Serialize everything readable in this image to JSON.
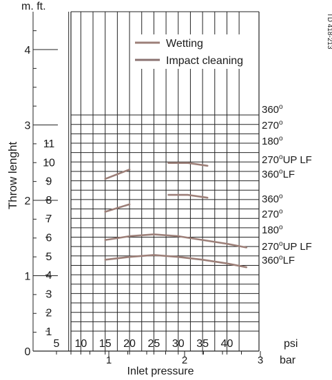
{
  "chart_data": {
    "type": "line",
    "unit_labels": {
      "metric": "m.",
      "imperial": "ft."
    },
    "ylabel": "Throw lenght",
    "xlabel": "Inlet pressure",
    "psi_unit": "psi",
    "bar_unit": "bar",
    "doc_code": "TD 418-213",
    "x_psi_ticks": [
      "5",
      "10",
      "15",
      "20",
      "25",
      "30",
      "35",
      "40"
    ],
    "x_bar_ticks": [
      "1",
      "2",
      "3"
    ],
    "y_m_ticks": [
      "0",
      "1",
      "2",
      "3",
      "4"
    ],
    "y_ft_ticks": [
      "1",
      "2",
      "3",
      "4",
      "5",
      "6",
      "7",
      "8",
      "9",
      "10",
      "11"
    ],
    "legend": [
      {
        "label": "Wetting",
        "color": "#9c7f78"
      },
      {
        "label": "Impact cleaning",
        "color": "#8a7270"
      }
    ],
    "right_labels": [
      {
        "angle": "360",
        "sup": "o",
        "suffix": ""
      },
      {
        "angle": "270",
        "sup": "o",
        "suffix": ""
      },
      {
        "angle": "180",
        "sup": "o",
        "suffix": ""
      },
      {
        "angle": "270",
        "sup": "o",
        "suffix": "UP LF"
      },
      {
        "angle": "360",
        "sup": "o",
        "suffix": "LF"
      },
      {
        "angle": "360",
        "sup": "o",
        "suffix": ""
      },
      {
        "angle": "270",
        "sup": "o",
        "suffix": ""
      },
      {
        "angle": "180",
        "sup": "o",
        "suffix": ""
      },
      {
        "angle": "270",
        "sup": "o",
        "suffix": "UP LF"
      },
      {
        "angle": "360",
        "sup": "o",
        "suffix": "LF"
      }
    ],
    "series": [
      {
        "points": [
          [
            15,
            9.1
          ],
          [
            20,
            9.6
          ]
        ]
      },
      {
        "points": [
          [
            28,
            9.95
          ],
          [
            32,
            9.95
          ],
          [
            36,
            9.8
          ]
        ]
      },
      {
        "points": [
          [
            15,
            7.35
          ],
          [
            20,
            7.75
          ]
        ]
      },
      {
        "points": [
          [
            28,
            8.25
          ],
          [
            32,
            8.25
          ],
          [
            36,
            8.1
          ]
        ]
      },
      {
        "points": [
          [
            15,
            5.85
          ],
          [
            20,
            6.05
          ],
          [
            25,
            6.15
          ],
          [
            30,
            6.05
          ],
          [
            35,
            5.85
          ],
          [
            40,
            5.65
          ],
          [
            44,
            5.45
          ]
        ]
      },
      {
        "points": [
          [
            15,
            4.8
          ],
          [
            20,
            4.95
          ],
          [
            25,
            5.05
          ],
          [
            30,
            4.95
          ],
          [
            35,
            4.8
          ],
          [
            40,
            4.6
          ],
          [
            44,
            4.4
          ]
        ]
      }
    ],
    "xlim": [
      2.5,
      44.5
    ],
    "ylim_ft": [
      0,
      13.5
    ],
    "ylim_m": [
      0,
      4.6
    ],
    "grid": true,
    "legend_position": "top-right"
  }
}
